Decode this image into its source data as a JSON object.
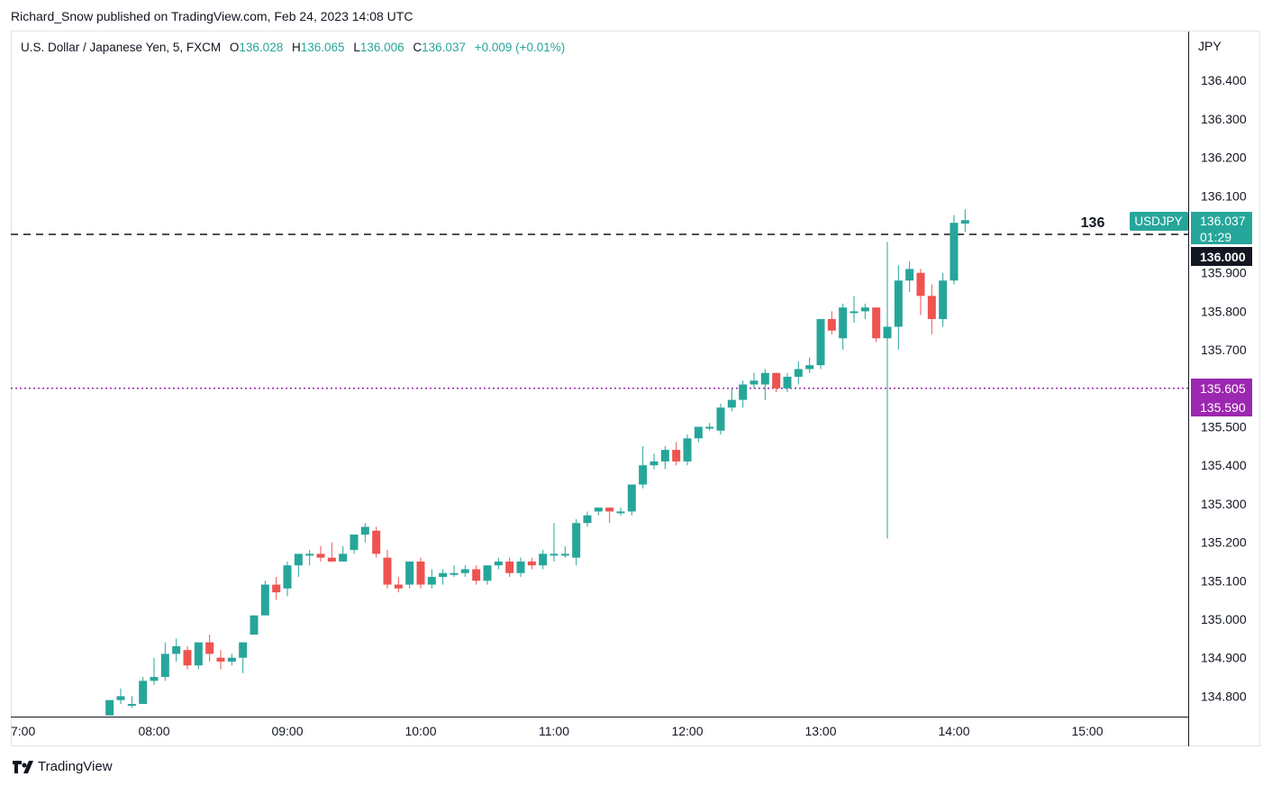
{
  "header": {
    "published_line": "Richard_Snow published on TradingView.com, Feb 24, 2023 14:08 UTC"
  },
  "legend": {
    "symbol_desc": "U.S. Dollar / Japanese Yen, 5, FXCM",
    "open_label": "O",
    "open": "136.028",
    "high_label": "H",
    "high": "136.065",
    "low_label": "L",
    "low": "136.006",
    "close_label": "C",
    "close": "136.037",
    "change": "+0.009 (+0.01%)"
  },
  "footer": {
    "brand": "TradingView"
  },
  "colors": {
    "up": "#26a69a",
    "down": "#ef5350",
    "grid_border": "#e0e3eb",
    "dotted_line": "#9c27b0",
    "purple_label": "#9c27b0",
    "dark_label": "#131722"
  },
  "price_axis": {
    "currency": "JPY",
    "ticks": [
      "136.400",
      "136.300",
      "136.200",
      "136.100",
      "135.900",
      "135.800",
      "135.700",
      "135.500",
      "135.400",
      "135.300",
      "135.200",
      "135.100",
      "135.000",
      "134.900",
      "134.800"
    ]
  },
  "time_axis": {
    "ticks": [
      "7:00",
      "08:00",
      "09:00",
      "10:00",
      "11:00",
      "12:00",
      "13:00",
      "14:00",
      "15:00"
    ]
  },
  "markers": {
    "dashed_level": {
      "value": 136.0,
      "text": "136",
      "axis_label": "136.000"
    },
    "dotted_level": {
      "value": 135.6,
      "axis_label_1": "135.605",
      "axis_label_2": "135.590"
    },
    "last_price": {
      "symbol": "USDJPY",
      "price": "136.037",
      "countdown": "01:29"
    }
  },
  "chart_data": {
    "type": "candlestick",
    "title": "U.S. Dollar / Japanese Yen, 5, FXCM",
    "interval_minutes": 5,
    "start_time": "07:40",
    "ylim": [
      134.76,
      136.46
    ],
    "x_ticks": [
      "7:00",
      "08:00",
      "09:00",
      "10:00",
      "11:00",
      "12:00",
      "13:00",
      "14:00",
      "15:00"
    ],
    "candles": [
      {
        "o": 134.75,
        "h": 134.79,
        "l": 134.76,
        "c": 134.79
      },
      {
        "o": 134.79,
        "h": 134.82,
        "l": 134.78,
        "c": 134.8
      },
      {
        "o": 134.78,
        "h": 134.8,
        "l": 134.77,
        "c": 134.78
      },
      {
        "o": 134.78,
        "h": 134.85,
        "l": 134.78,
        "c": 134.84
      },
      {
        "o": 134.84,
        "h": 134.9,
        "l": 134.83,
        "c": 134.85
      },
      {
        "o": 134.85,
        "h": 134.94,
        "l": 134.84,
        "c": 134.91
      },
      {
        "o": 134.91,
        "h": 134.95,
        "l": 134.89,
        "c": 134.93
      },
      {
        "o": 134.92,
        "h": 134.93,
        "l": 134.87,
        "c": 134.88
      },
      {
        "o": 134.88,
        "h": 134.94,
        "l": 134.87,
        "c": 134.94
      },
      {
        "o": 134.94,
        "h": 134.96,
        "l": 134.89,
        "c": 134.91
      },
      {
        "o": 134.9,
        "h": 134.92,
        "l": 134.87,
        "c": 134.89
      },
      {
        "o": 134.89,
        "h": 134.91,
        "l": 134.88,
        "c": 134.9
      },
      {
        "o": 134.9,
        "h": 134.94,
        "l": 134.86,
        "c": 134.94
      },
      {
        "o": 134.96,
        "h": 135.01,
        "l": 134.96,
        "c": 135.01
      },
      {
        "o": 135.01,
        "h": 135.1,
        "l": 135.01,
        "c": 135.09
      },
      {
        "o": 135.09,
        "h": 135.11,
        "l": 135.05,
        "c": 135.07
      },
      {
        "o": 135.08,
        "h": 135.15,
        "l": 135.06,
        "c": 135.14
      },
      {
        "o": 135.14,
        "h": 135.17,
        "l": 135.11,
        "c": 135.17
      },
      {
        "o": 135.17,
        "h": 135.18,
        "l": 135.14,
        "c": 135.17
      },
      {
        "o": 135.17,
        "h": 135.19,
        "l": 135.15,
        "c": 135.16
      },
      {
        "o": 135.16,
        "h": 135.2,
        "l": 135.15,
        "c": 135.15
      },
      {
        "o": 135.15,
        "h": 135.19,
        "l": 135.15,
        "c": 135.17
      },
      {
        "o": 135.18,
        "h": 135.22,
        "l": 135.17,
        "c": 135.22
      },
      {
        "o": 135.22,
        "h": 135.25,
        "l": 135.2,
        "c": 135.24
      },
      {
        "o": 135.23,
        "h": 135.24,
        "l": 135.16,
        "c": 135.17
      },
      {
        "o": 135.16,
        "h": 135.18,
        "l": 135.08,
        "c": 135.09
      },
      {
        "o": 135.09,
        "h": 135.11,
        "l": 135.07,
        "c": 135.08
      },
      {
        "o": 135.09,
        "h": 135.15,
        "l": 135.08,
        "c": 135.15
      },
      {
        "o": 135.15,
        "h": 135.16,
        "l": 135.08,
        "c": 135.09
      },
      {
        "o": 135.09,
        "h": 135.13,
        "l": 135.08,
        "c": 135.11
      },
      {
        "o": 135.11,
        "h": 135.13,
        "l": 135.09,
        "c": 135.12
      },
      {
        "o": 135.12,
        "h": 135.14,
        "l": 135.11,
        "c": 135.12
      },
      {
        "o": 135.12,
        "h": 135.14,
        "l": 135.11,
        "c": 135.13
      },
      {
        "o": 135.13,
        "h": 135.14,
        "l": 135.09,
        "c": 135.1
      },
      {
        "o": 135.1,
        "h": 135.14,
        "l": 135.09,
        "c": 135.14
      },
      {
        "o": 135.14,
        "h": 135.16,
        "l": 135.13,
        "c": 135.15
      },
      {
        "o": 135.15,
        "h": 135.16,
        "l": 135.11,
        "c": 135.12
      },
      {
        "o": 135.12,
        "h": 135.16,
        "l": 135.11,
        "c": 135.15
      },
      {
        "o": 135.15,
        "h": 135.16,
        "l": 135.13,
        "c": 135.14
      },
      {
        "o": 135.14,
        "h": 135.18,
        "l": 135.13,
        "c": 135.17
      },
      {
        "o": 135.17,
        "h": 135.25,
        "l": 135.15,
        "c": 135.17
      },
      {
        "o": 135.17,
        "h": 135.19,
        "l": 135.16,
        "c": 135.17
      },
      {
        "o": 135.16,
        "h": 135.26,
        "l": 135.14,
        "c": 135.25
      },
      {
        "o": 135.25,
        "h": 135.28,
        "l": 135.24,
        "c": 135.27
      },
      {
        "o": 135.28,
        "h": 135.29,
        "l": 135.27,
        "c": 135.29
      },
      {
        "o": 135.29,
        "h": 135.29,
        "l": 135.25,
        "c": 135.28
      },
      {
        "o": 135.28,
        "h": 135.29,
        "l": 135.27,
        "c": 135.28
      },
      {
        "o": 135.28,
        "h": 135.35,
        "l": 135.27,
        "c": 135.35
      },
      {
        "o": 135.35,
        "h": 135.45,
        "l": 135.34,
        "c": 135.4
      },
      {
        "o": 135.4,
        "h": 135.43,
        "l": 135.39,
        "c": 135.41
      },
      {
        "o": 135.41,
        "h": 135.45,
        "l": 135.39,
        "c": 135.44
      },
      {
        "o": 135.44,
        "h": 135.46,
        "l": 135.4,
        "c": 135.41
      },
      {
        "o": 135.41,
        "h": 135.48,
        "l": 135.4,
        "c": 135.47
      },
      {
        "o": 135.47,
        "h": 135.5,
        "l": 135.46,
        "c": 135.5
      },
      {
        "o": 135.5,
        "h": 135.51,
        "l": 135.49,
        "c": 135.5
      },
      {
        "o": 135.49,
        "h": 135.56,
        "l": 135.48,
        "c": 135.55
      },
      {
        "o": 135.55,
        "h": 135.6,
        "l": 135.54,
        "c": 135.57
      },
      {
        "o": 135.57,
        "h": 135.62,
        "l": 135.55,
        "c": 135.61
      },
      {
        "o": 135.61,
        "h": 135.64,
        "l": 135.6,
        "c": 135.62
      },
      {
        "o": 135.61,
        "h": 135.65,
        "l": 135.57,
        "c": 135.64
      },
      {
        "o": 135.64,
        "h": 135.64,
        "l": 135.59,
        "c": 135.6
      },
      {
        "o": 135.6,
        "h": 135.64,
        "l": 135.59,
        "c": 135.63
      },
      {
        "o": 135.63,
        "h": 135.67,
        "l": 135.61,
        "c": 135.65
      },
      {
        "o": 135.65,
        "h": 135.68,
        "l": 135.64,
        "c": 135.66
      },
      {
        "o": 135.66,
        "h": 135.78,
        "l": 135.65,
        "c": 135.78
      },
      {
        "o": 135.78,
        "h": 135.8,
        "l": 135.74,
        "c": 135.75
      },
      {
        "o": 135.73,
        "h": 135.82,
        "l": 135.7,
        "c": 135.81
      },
      {
        "o": 135.8,
        "h": 135.84,
        "l": 135.77,
        "c": 135.8
      },
      {
        "o": 135.8,
        "h": 135.82,
        "l": 135.78,
        "c": 135.81
      },
      {
        "o": 135.81,
        "h": 135.81,
        "l": 135.72,
        "c": 135.73
      },
      {
        "o": 135.73,
        "h": 135.98,
        "l": 135.21,
        "c": 135.76
      },
      {
        "o": 135.76,
        "h": 135.92,
        "l": 135.7,
        "c": 135.88
      },
      {
        "o": 135.88,
        "h": 135.93,
        "l": 135.85,
        "c": 135.91
      },
      {
        "o": 135.9,
        "h": 135.91,
        "l": 135.79,
        "c": 135.84
      },
      {
        "o": 135.84,
        "h": 135.87,
        "l": 135.74,
        "c": 135.78
      },
      {
        "o": 135.78,
        "h": 135.9,
        "l": 135.76,
        "c": 135.88
      },
      {
        "o": 135.88,
        "h": 136.05,
        "l": 135.87,
        "c": 136.03
      },
      {
        "o": 136.028,
        "h": 136.065,
        "l": 136.006,
        "c": 136.037
      }
    ],
    "reference_lines": [
      {
        "value": 136.0,
        "style": "dashed",
        "label": "136"
      },
      {
        "value": 135.6,
        "style": "dotted"
      }
    ]
  }
}
